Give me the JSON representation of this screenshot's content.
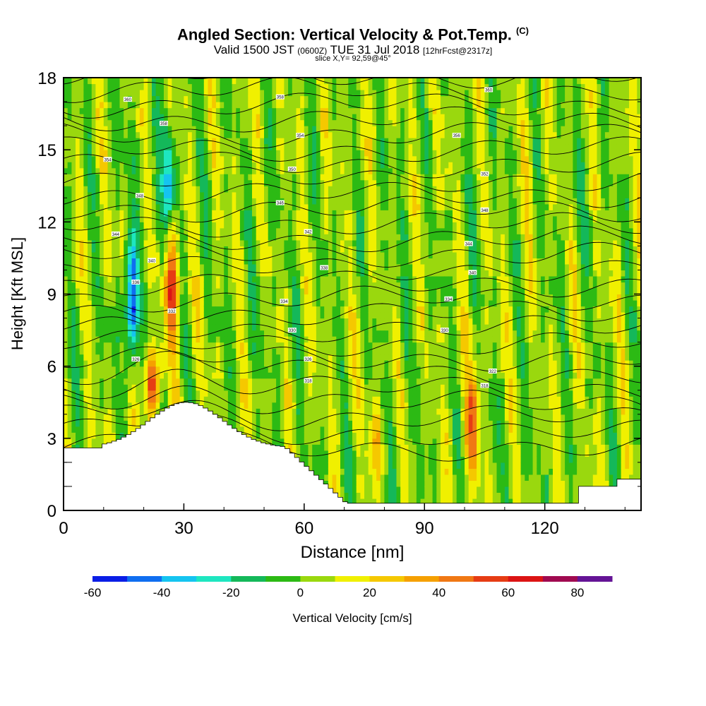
{
  "header": {
    "title": "Angled Section: Vertical Velocity & Pot.Temp.",
    "title_tag": "(C)",
    "valid_prefix": "Valid 1500 JST",
    "valid_zulu": "(0600Z)",
    "valid_date": "TUE 31 Jul 2018",
    "forecast": "[12hrFcst@2317z]",
    "slice": "slice X,Y= 92,59@45°"
  },
  "chart_data": {
    "type": "heatmap",
    "xlabel": "Distance [nm]",
    "ylabel": "Height [Kft MSL]",
    "xlim": [
      0,
      144
    ],
    "ylim": [
      0,
      18
    ],
    "xticks": [
      0,
      30,
      60,
      90,
      120
    ],
    "yticks": [
      0,
      3,
      6,
      9,
      12,
      15,
      18
    ],
    "colorbar": {
      "label": "Vertical Velocity [cm/s]",
      "range": [
        -60,
        90
      ],
      "ticks": [
        -60,
        -40,
        -20,
        0,
        20,
        40,
        60,
        80
      ],
      "colors": [
        "#0a1ee6",
        "#0f6ef0",
        "#15c4f0",
        "#1ee6c0",
        "#14b85a",
        "#2cba14",
        "#9ad80e",
        "#f0f000",
        "#f5c800",
        "#f5a000",
        "#f07814",
        "#e63c14",
        "#dc1414",
        "#a00a50",
        "#641496"
      ]
    },
    "features": [
      {
        "name": "updraft",
        "x": 27,
        "z": [
          7.5,
          11
        ],
        "w": 60
      },
      {
        "name": "downdraft",
        "x": 17,
        "z": [
          7,
          10.5
        ],
        "w": -60
      },
      {
        "name": "downdraft",
        "x": 26,
        "z": [
          12,
          15.5
        ],
        "w": -40
      },
      {
        "name": "updraft",
        "x": 22,
        "z": [
          4.5,
          6
        ],
        "w": 55
      },
      {
        "name": "updraft",
        "x": 102,
        "z": [
          2,
          5
        ],
        "w": 45
      },
      {
        "name": "updraft",
        "x": 78,
        "z": [
          1.5,
          4
        ],
        "w": 25
      }
    ],
    "theta_labels": [
      {
        "x": 16,
        "z": 17.1,
        "text": "360"
      },
      {
        "x": 25,
        "z": 16.1,
        "text": "358"
      },
      {
        "x": 54,
        "z": 17.2,
        "text": "358"
      },
      {
        "x": 106,
        "z": 17.5,
        "text": "360"
      },
      {
        "x": 11,
        "z": 14.6,
        "text": "354"
      },
      {
        "x": 59,
        "z": 15.6,
        "text": "354"
      },
      {
        "x": 98,
        "z": 15.6,
        "text": "356"
      },
      {
        "x": 57,
        "z": 14.2,
        "text": "350"
      },
      {
        "x": 105,
        "z": 14.0,
        "text": "352"
      },
      {
        "x": 19,
        "z": 13.1,
        "text": "348"
      },
      {
        "x": 54,
        "z": 12.8,
        "text": "346"
      },
      {
        "x": 105,
        "z": 12.5,
        "text": "348"
      },
      {
        "x": 13,
        "z": 11.5,
        "text": "344"
      },
      {
        "x": 61,
        "z": 11.6,
        "text": "342"
      },
      {
        "x": 101,
        "z": 11.1,
        "text": "344"
      },
      {
        "x": 22,
        "z": 10.4,
        "text": "340"
      },
      {
        "x": 65,
        "z": 10.1,
        "text": "338"
      },
      {
        "x": 102,
        "z": 9.9,
        "text": "340"
      },
      {
        "x": 18,
        "z": 9.5,
        "text": "336"
      },
      {
        "x": 55,
        "z": 8.7,
        "text": "334"
      },
      {
        "x": 96,
        "z": 8.8,
        "text": "334"
      },
      {
        "x": 27,
        "z": 8.3,
        "text": "332"
      },
      {
        "x": 57,
        "z": 7.5,
        "text": "330"
      },
      {
        "x": 95,
        "z": 7.5,
        "text": "330"
      },
      {
        "x": 18,
        "z": 6.3,
        "text": "326"
      },
      {
        "x": 61,
        "z": 6.3,
        "text": "326"
      },
      {
        "x": 107,
        "z": 5.8,
        "text": "322"
      },
      {
        "x": 61,
        "z": 5.4,
        "text": "318"
      },
      {
        "x": 105,
        "z": 5.2,
        "text": "318"
      }
    ]
  }
}
